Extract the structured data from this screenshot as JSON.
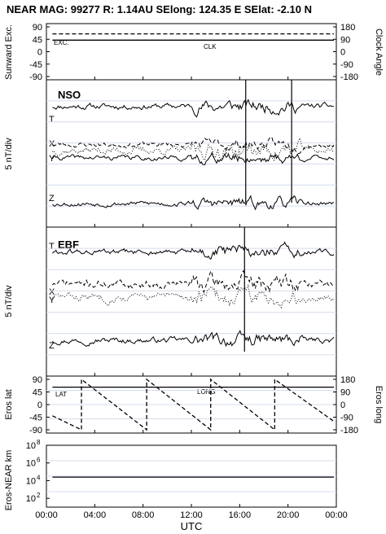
{
  "header": "NEAR MAG: 99277  R: 1.14AU  SElong:  124.35 E  SElat:   -2.10 N",
  "x_axis": {
    "label": "UTC",
    "range_hours": [
      0,
      24
    ],
    "ticks": [
      "00:00",
      "04:00",
      "08:00",
      "12:00",
      "16:00",
      "20:00",
      "00:00"
    ]
  },
  "panels": {
    "p1": {
      "left_label": "Sunward Exc.",
      "right_label": "Clock Angle",
      "left_ticks": [
        "90",
        "45",
        "0",
        "-45",
        "-90"
      ],
      "right_ticks": [
        "180",
        "90",
        "0",
        "-90",
        "-180"
      ],
      "exc_label": "EXC.",
      "clk_label": "CLK"
    },
    "p2": {
      "ylabel": "5 nT/div",
      "title": "NSO",
      "tags": [
        "T",
        "X",
        "Y",
        "Z"
      ]
    },
    "p3": {
      "ylabel": "5 nT/div",
      "title": "EBF",
      "tags": [
        "T",
        "X",
        "Y",
        "Z"
      ]
    },
    "p4": {
      "left_label": "Eros lat",
      "right_label": "Eros long",
      "left_ticks": [
        "90",
        "45",
        "0",
        "-45",
        "-90"
      ],
      "right_ticks": [
        "180",
        "90",
        "0",
        "-90",
        "-180"
      ],
      "lat_label": "LAT",
      "long_label": "LONG"
    },
    "p5": {
      "ylabel": "Eros-NEAR km",
      "ticks": [
        {
          "b": "10",
          "e": "8"
        },
        {
          "b": "10",
          "e": "6"
        },
        {
          "b": "10",
          "e": "4"
        },
        {
          "b": "10",
          "e": "2"
        }
      ]
    }
  },
  "chart_data": [
    {
      "type": "line",
      "panel": "sunward-clock",
      "ylim": [
        -90,
        90
      ],
      "y2lim": [
        -180,
        180
      ],
      "series": [
        {
          "name": "EXC.",
          "style": "solid",
          "x": [
            0.5,
            23.8
          ],
          "y": [
            37,
            37
          ]
        },
        {
          "name": "CLK",
          "style": "dashed",
          "x": [
            0.5,
            23.8
          ],
          "y": [
            57,
            57
          ]
        }
      ]
    },
    {
      "type": "line",
      "panel": "NSO",
      "ylim": [
        0,
        10
      ],
      "series": [
        {
          "name": "T",
          "style": "solid",
          "base": 8.2,
          "amp": 0.35,
          "seed": 11
        },
        {
          "name": "X",
          "style": "dashed",
          "base": 5.6,
          "amp": 0.3,
          "seed": 23
        },
        {
          "name": "Y",
          "style": "dotted",
          "base": 5.2,
          "amp": 0.45,
          "seed": 37
        },
        {
          "name": "Y-solid",
          "style": "solid",
          "base": 4.7,
          "amp": 0.3,
          "seed": 41
        },
        {
          "name": "Z",
          "style": "solid",
          "base": 1.6,
          "amp": 0.3,
          "seed": 53
        }
      ]
    },
    {
      "type": "line",
      "panel": "EBF",
      "ylim": [
        0,
        10
      ],
      "series": [
        {
          "name": "T",
          "style": "solid",
          "base": 8.3,
          "amp": 0.35,
          "seed": 61
        },
        {
          "name": "X",
          "style": "dashed",
          "base": 6.2,
          "amp": 0.5,
          "seed": 71
        },
        {
          "name": "Y",
          "style": "dotted",
          "base": 5.3,
          "amp": 0.5,
          "seed": 83
        },
        {
          "name": "Z",
          "style": "solid",
          "base": 2.4,
          "amp": 0.35,
          "seed": 97
        }
      ]
    },
    {
      "type": "line",
      "panel": "eros-lat-long",
      "ylim": [
        -90,
        90
      ],
      "y2lim": [
        -180,
        180
      ],
      "series": [
        {
          "name": "LAT",
          "style": "solid",
          "x": [
            0.5,
            23.8
          ],
          "y": [
            62,
            62
          ]
        },
        {
          "name": "LONG",
          "style": "dashed",
          "x": [
            0.5,
            2.9,
            2.9,
            8.3,
            8.3,
            13.6,
            13.6,
            18.9,
            18.9,
            23.8
          ],
          "y": [
            -80,
            -180,
            180,
            -180,
            180,
            -180,
            180,
            -180,
            180,
            -120
          ]
        }
      ]
    },
    {
      "type": "line",
      "panel": "eros-near-distance",
      "yscale": "log",
      "ylim": [
        10,
        100000000
      ],
      "series": [
        {
          "name": "distance",
          "style": "solid",
          "x": [
            0.5,
            23.8
          ],
          "y": [
            25000,
            25000
          ]
        }
      ]
    }
  ]
}
